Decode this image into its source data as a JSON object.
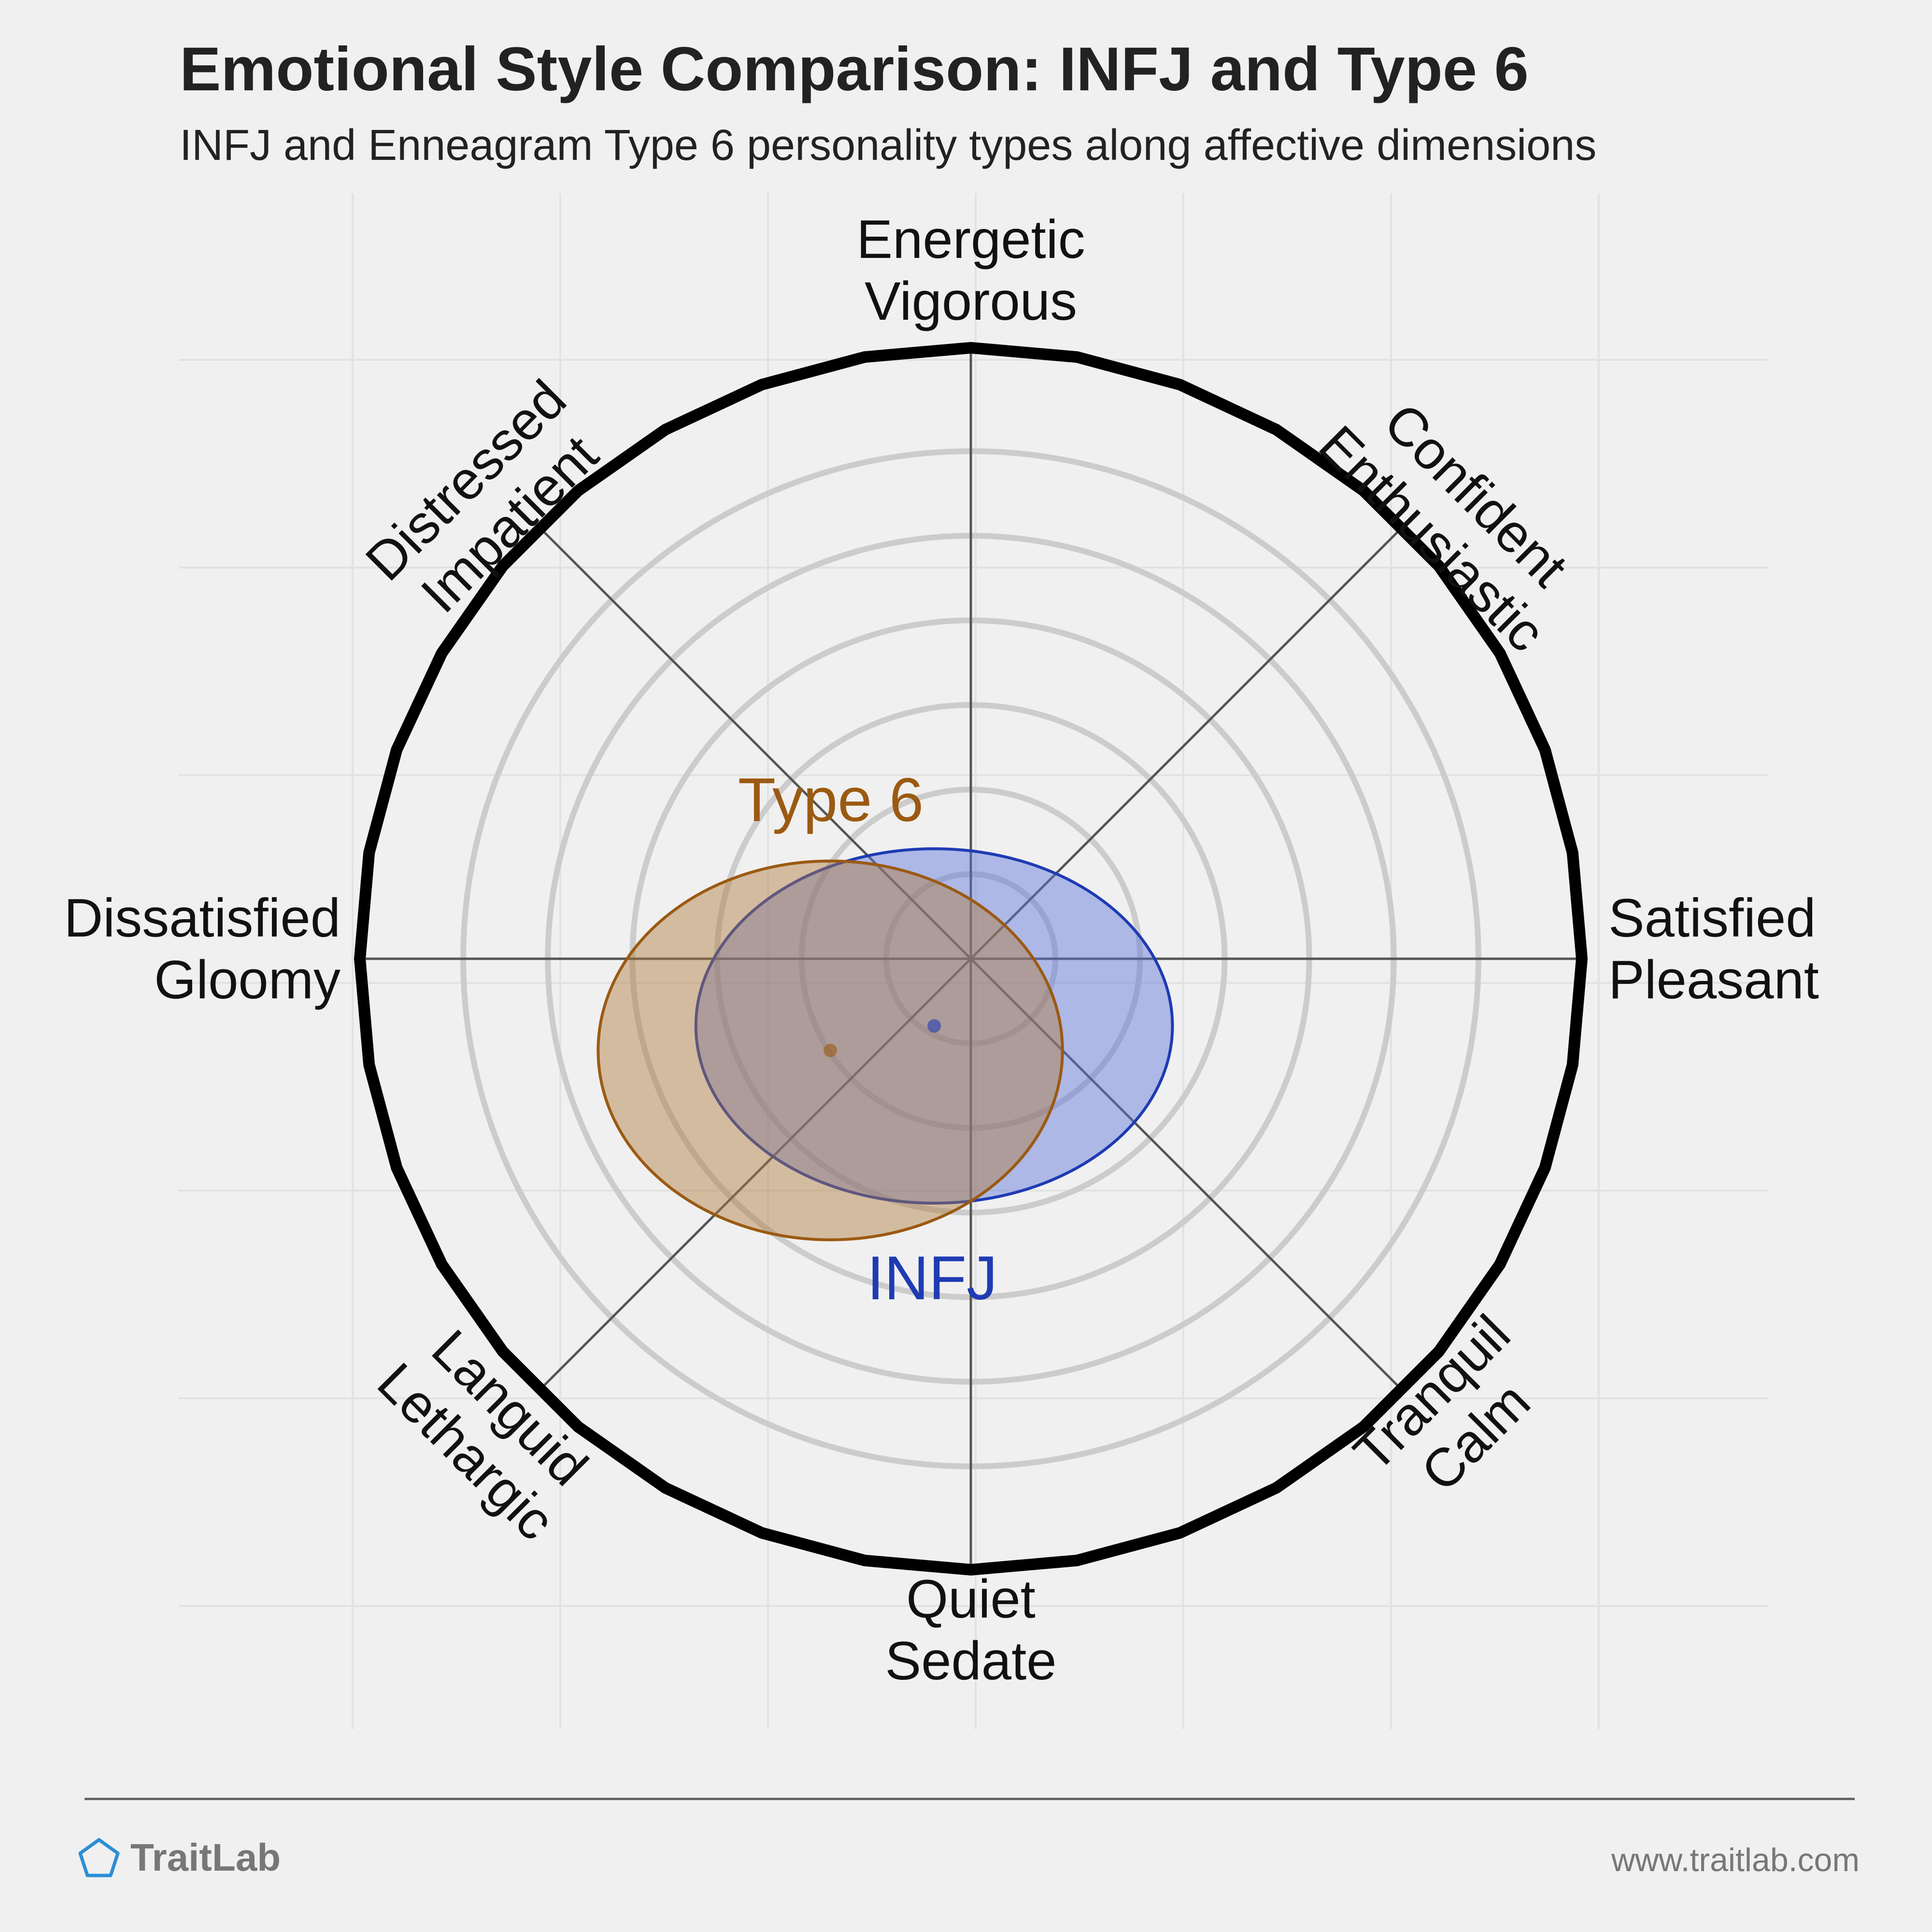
{
  "header": {
    "title": "Emotional Style Comparison: INFJ and Type 6",
    "subtitle": "INFJ and Enneagram Type 6 personality types along affective dimensions"
  },
  "chart_data": {
    "type": "scatter",
    "title": "Emotional Style Comparison: INFJ and Type 6",
    "subtitle": "INFJ and Enneagram Type 6 personality types along affective dimensions",
    "axes": [
      {
        "direction": "up",
        "lines": [
          "Energetic",
          "Vigorous"
        ]
      },
      {
        "direction": "up-right",
        "lines": [
          "Confident",
          "Enthusiastic"
        ]
      },
      {
        "direction": "right",
        "lines": [
          "Satisfied",
          "Pleasant"
        ]
      },
      {
        "direction": "down-right",
        "lines": [
          "Tranquil",
          "Calm"
        ]
      },
      {
        "direction": "down",
        "lines": [
          "Quiet",
          "Sedate"
        ]
      },
      {
        "direction": "down-left",
        "lines": [
          "Languid",
          "Lethargic"
        ]
      },
      {
        "direction": "left",
        "lines": [
          "Dissatisfied",
          "Gloomy"
        ]
      },
      {
        "direction": "up-left",
        "lines": [
          "Distressed",
          "Impatient"
        ]
      }
    ],
    "x_axis": {
      "negative": "Dissatisfied / Gloomy",
      "positive": "Satisfied / Pleasant"
    },
    "y_axis": {
      "negative": "Quiet / Sedate",
      "positive": "Energetic / Vigorous"
    },
    "range": [
      -1,
      1
    ],
    "rings": 6,
    "grid": true,
    "series": [
      {
        "name": "INFJ",
        "x": -0.06,
        "y": -0.11,
        "spread_x": 0.39,
        "spread_y": 0.29,
        "color": "#1f3bb3",
        "fill": "#5a73d9"
      },
      {
        "name": "Type 6",
        "x": -0.23,
        "y": -0.15,
        "spread_x": 0.38,
        "spread_y": 0.31,
        "color": "#9b5a12",
        "fill": "#b07a3e"
      }
    ]
  },
  "footer": {
    "brand": "TraitLab",
    "url": "www.traitlab.com",
    "logo_icon": "pentagon-icon",
    "brand_color": "#2a8fd6"
  }
}
